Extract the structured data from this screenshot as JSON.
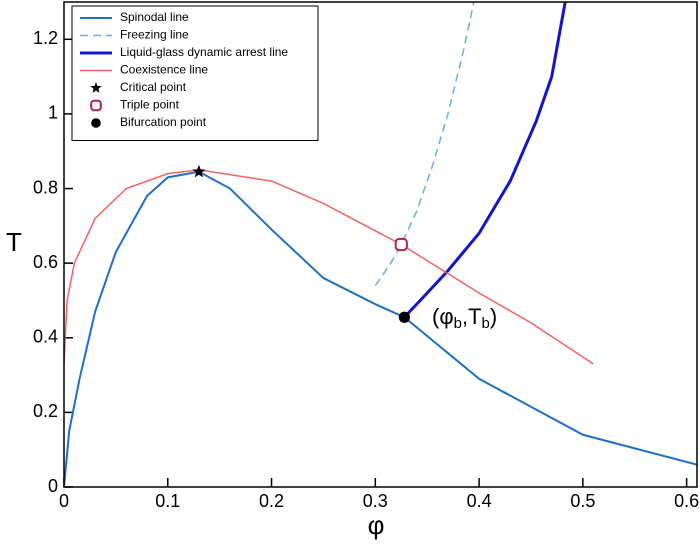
{
  "chart_data": {
    "type": "line",
    "xlabel": "φ",
    "ylabel": "T",
    "xlim": [
      0,
      0.61
    ],
    "ylim": [
      0,
      1.3
    ],
    "xticks": [
      0,
      0.1,
      0.2,
      0.3,
      0.4,
      0.5,
      0.6
    ],
    "yticks": [
      0,
      0.2,
      0.4,
      0.6,
      0.8,
      1,
      1.2
    ],
    "legend": "upper left",
    "series": [
      {
        "name": "Spinodal line",
        "color": "#1f6fc4",
        "dash": false,
        "width": 2,
        "x": [
          0,
          0.005,
          0.015,
          0.03,
          0.05,
          0.08,
          0.1,
          0.13,
          0.16,
          0.2,
          0.25,
          0.3,
          0.328,
          0.4,
          0.5,
          0.61
        ],
        "values": [
          0,
          0.15,
          0.29,
          0.47,
          0.63,
          0.78,
          0.83,
          0.845,
          0.8,
          0.69,
          0.56,
          0.49,
          0.455,
          0.29,
          0.14,
          0.06
        ]
      },
      {
        "name": "Freezing line",
        "color": "#6aaee8",
        "dash": true,
        "width": 1.5,
        "x": [
          0.3,
          0.315,
          0.325,
          0.34,
          0.355,
          0.37,
          0.385,
          0.395
        ],
        "values": [
          0.54,
          0.6,
          0.65,
          0.74,
          0.86,
          1.0,
          1.17,
          1.3
        ]
      },
      {
        "name": "Liquid-glass dynamic arrest line",
        "color": "#1414c8",
        "dash": false,
        "width": 3,
        "x": [
          0.328,
          0.35,
          0.37,
          0.4,
          0.43,
          0.455,
          0.47,
          0.483
        ],
        "values": [
          0.455,
          0.52,
          0.58,
          0.68,
          0.82,
          0.98,
          1.1,
          1.3
        ]
      },
      {
        "name": "Coexistence line",
        "color": "#f0645f",
        "dash": false,
        "width": 1.5,
        "x": [
          0,
          0.003,
          0.01,
          0.03,
          0.06,
          0.1,
          0.13,
          0.2,
          0.25,
          0.325,
          0.4,
          0.45,
          0.51
        ],
        "values": [
          0.33,
          0.5,
          0.6,
          0.72,
          0.8,
          0.84,
          0.85,
          0.82,
          0.76,
          0.65,
          0.52,
          0.44,
          0.33
        ]
      }
    ],
    "points": [
      {
        "name": "Critical point",
        "marker": "star",
        "color": "#000000",
        "x": 0.13,
        "y": 0.845
      },
      {
        "name": "Triple point",
        "marker": "ring",
        "color": "#b0204a",
        "x": 0.325,
        "y": 0.65
      },
      {
        "name": "Bifurcation point",
        "marker": "dot",
        "color": "#000000",
        "x": 0.328,
        "y": 0.455
      }
    ],
    "annotation": [
      "(φ",
      "b",
      ",T",
      "b",
      ")"
    ]
  }
}
